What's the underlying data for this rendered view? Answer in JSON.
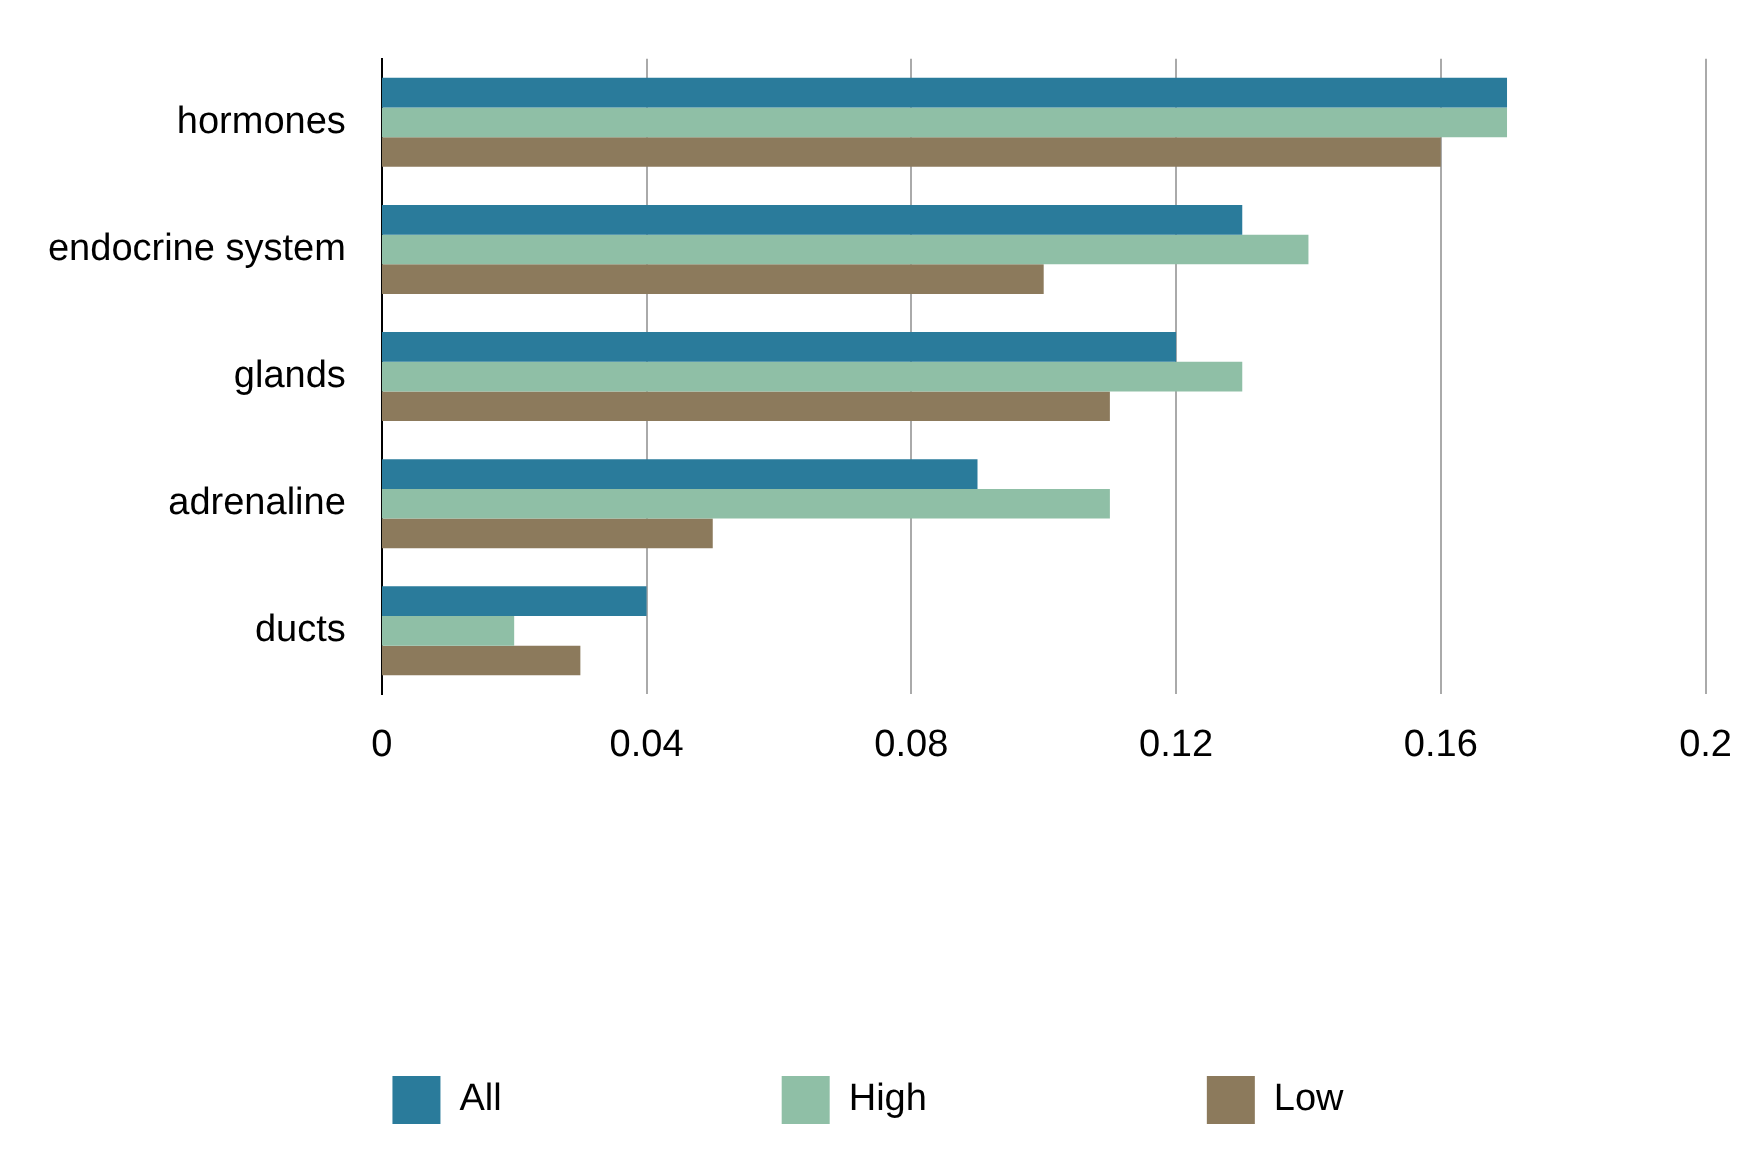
{
  "chart_data": {
    "type": "bar",
    "orientation": "horizontal",
    "categories": [
      "hormones",
      "endocrine system",
      "glands",
      "adrenaline",
      "ducts"
    ],
    "series": [
      {
        "name": "All",
        "color": "#2a7b9b",
        "values": [
          0.17,
          0.13,
          0.12,
          0.09,
          0.04
        ]
      },
      {
        "name": "High",
        "color": "#8fbfa6",
        "values": [
          0.17,
          0.14,
          0.13,
          0.11,
          0.02
        ]
      },
      {
        "name": "Low",
        "color": "#8c7a5c",
        "values": [
          0.16,
          0.1,
          0.11,
          0.05,
          0.03
        ]
      }
    ],
    "xlim": [
      0,
      0.2
    ],
    "xticks": [
      0,
      0.04,
      0.08,
      0.12,
      0.16,
      0.2
    ],
    "grid": "x",
    "legend": "bottom"
  }
}
